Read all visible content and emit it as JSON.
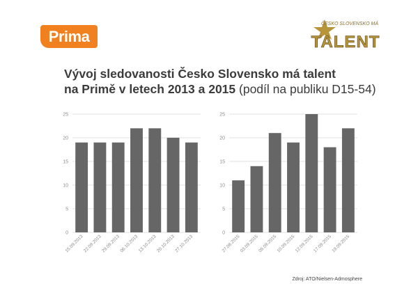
{
  "header": {
    "brand_logo_text": "Prima",
    "show_logo_top": "ČESKO SLOVENSKO MÁ",
    "show_logo_main": "TALENT"
  },
  "title": {
    "line1": "Vývoj sledovanosti Česko Slovensko má talent",
    "line2": "na Primě v letech 2013 a 2015",
    "line3": "(podíl na publiku D15-54)"
  },
  "colors": {
    "bar": "#666666",
    "grid": "#d9d9d9",
    "axis_text": "#8c8c8c",
    "brand": "#f0811e",
    "title": "#3b3b3b"
  },
  "chart_data": [
    {
      "type": "bar",
      "categories": [
        "15.09.2013",
        "22.09.2013",
        "29.09.2013",
        "06.10.2013",
        "13.10.2013",
        "20.10.2013",
        "27.10.2013"
      ],
      "values": [
        19,
        19,
        19,
        22,
        22,
        20,
        19
      ],
      "ylim": [
        0,
        25
      ],
      "yticks": [
        0,
        5,
        10,
        15,
        20,
        25
      ],
      "grid": true
    },
    {
      "type": "bar",
      "categories": [
        "27.08.2015",
        "03.09.2015",
        "05.09.2015",
        "10.09.2015",
        "12.09.2015",
        "17.09.2015",
        "19.09.2015"
      ],
      "values": [
        11,
        14,
        21,
        19,
        25,
        18,
        22
      ],
      "ylim": [
        0,
        25
      ],
      "yticks": [
        0,
        5,
        10,
        15,
        20,
        25
      ],
      "grid": true
    }
  ],
  "footer": {
    "source": "Zdroj: ATO/Nielsen-Admosphere"
  }
}
